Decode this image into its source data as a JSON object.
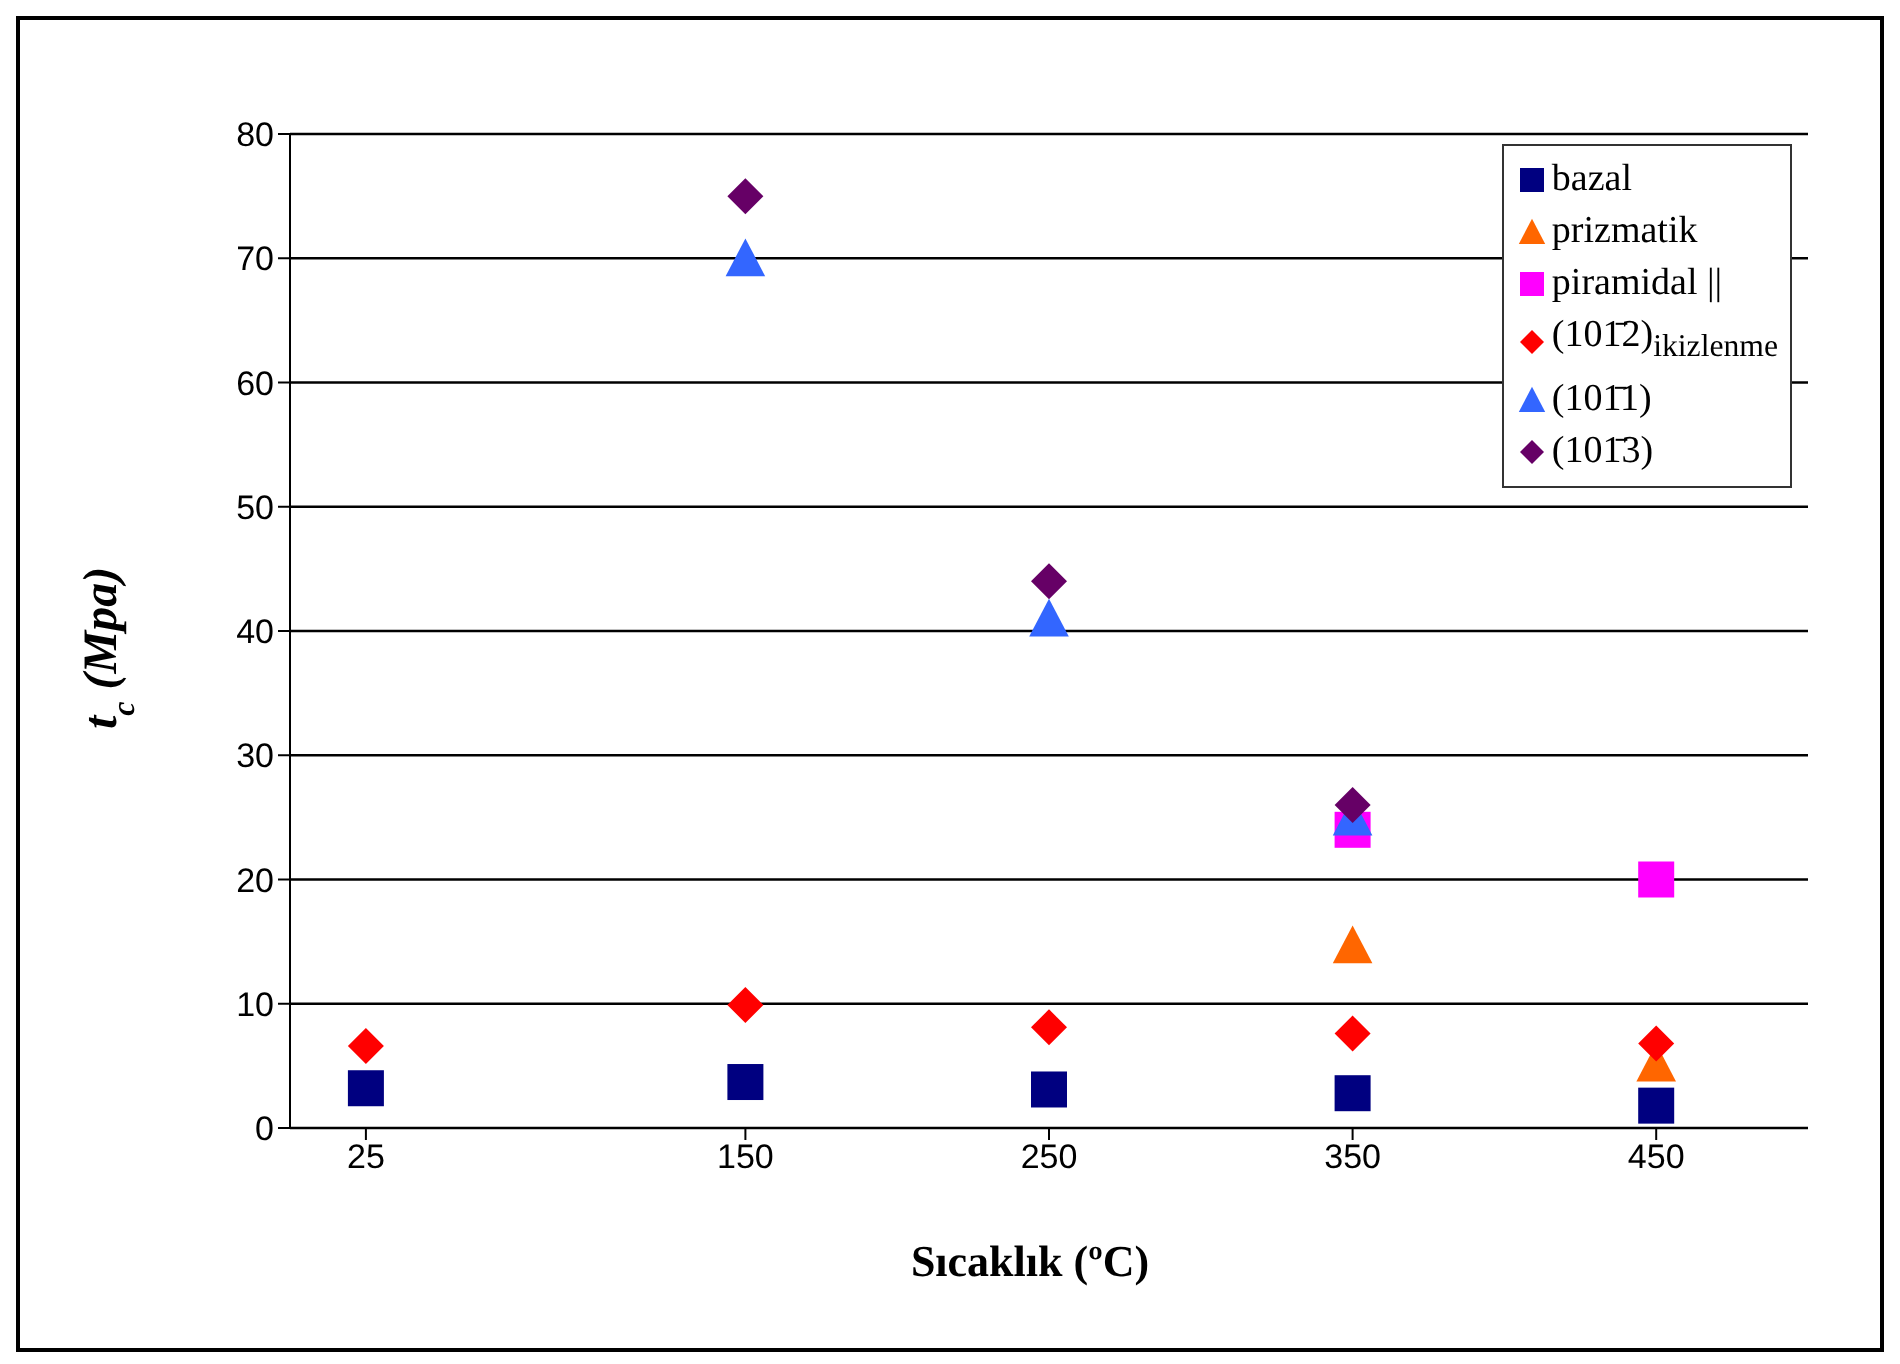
{
  "chart_data": {
    "type": "scatter",
    "xlabel": "Sıcaklık (ºC)",
    "ylabel": "t$_{c}$ (Mpa)",
    "xlim": [
      0,
      500
    ],
    "xticks": [
      25,
      150,
      250,
      350,
      450
    ],
    "ylim": [
      0,
      80
    ],
    "yticks": [
      0,
      10,
      20,
      30,
      40,
      50,
      60,
      70,
      80
    ],
    "grid": "y",
    "legend": "top right",
    "series": [
      {
        "name": "bazal",
        "color": "#000080",
        "marker": "square",
        "x": [
          25,
          150,
          250,
          350,
          450
        ],
        "values": [
          3.2,
          3.7,
          3.1,
          2.8,
          1.8
        ]
      },
      {
        "name": "prizmatik",
        "color": "#ff6600",
        "marker": "triangle",
        "x": [
          350,
          450
        ],
        "values": [
          14.7,
          5.2
        ]
      },
      {
        "name": "piramidal ||",
        "color": "#ff00ff",
        "marker": "square",
        "x": [
          350,
          450
        ],
        "values": [
          24,
          20
        ]
      },
      {
        "name": "(101̄2)$_{ikizlenme}$",
        "color": "#ff0000",
        "marker": "diamond",
        "x": [
          25,
          150,
          250,
          350,
          450
        ],
        "values": [
          6.6,
          9.9,
          8.1,
          7.6,
          6.8
        ]
      },
      {
        "name": "(101̄1)",
        "color": "#3366ff",
        "marker": "triangle",
        "x": [
          150,
          250,
          350
        ],
        "values": [
          70,
          41,
          25
        ]
      },
      {
        "name": "(101̄3)",
        "color": "#660066",
        "marker": "diamond",
        "x": [
          150,
          250,
          350
        ],
        "values": [
          75,
          44,
          26
        ]
      }
    ]
  }
}
